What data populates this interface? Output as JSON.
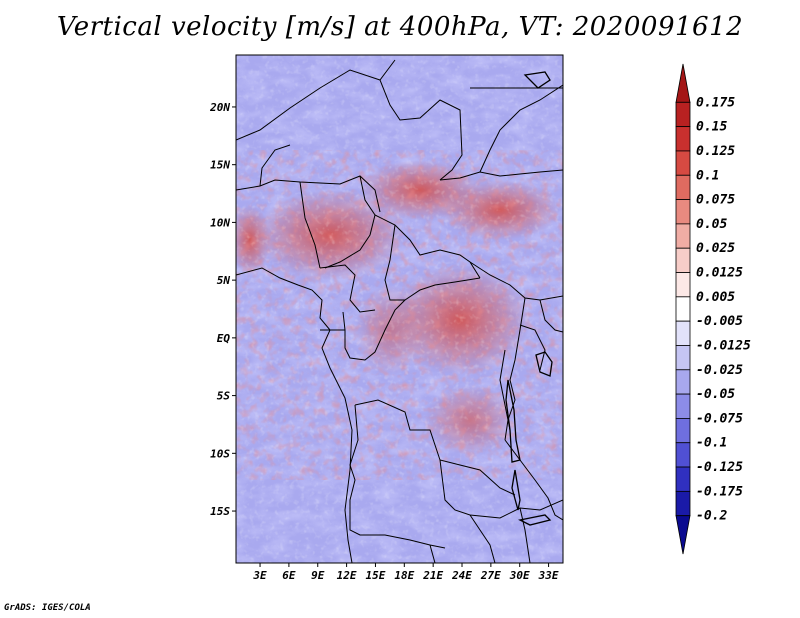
{
  "title": "Vertical velocity [m/s] at 400hPa, VT: 2020091612",
  "credit": "GrADS: IGES/COLA",
  "map": {
    "lat_labels": [
      "20N",
      "15N",
      "10N",
      "5N",
      "EQ",
      "5S",
      "10S",
      "15S"
    ],
    "lat_values": [
      20,
      15,
      10,
      5,
      0,
      -5,
      -10,
      -15
    ],
    "lon_labels": [
      "3E",
      "6E",
      "9E",
      "12E",
      "15E",
      "18E",
      "21E",
      "24E",
      "27E",
      "30E",
      "33E"
    ],
    "lon_values": [
      3,
      6,
      9,
      12,
      15,
      18,
      21,
      24,
      27,
      30,
      33
    ],
    "lon_range": [
      0.5,
      34.5
    ],
    "lat_range": [
      -19.5,
      24.5
    ]
  },
  "colorbar": {
    "labels": [
      "0.175",
      "0.15",
      "0.125",
      "0.1",
      "0.075",
      "0.05",
      "0.025",
      "0.0125",
      "0.005",
      "-0.005",
      "-0.0125",
      "-0.025",
      "-0.05",
      "-0.075",
      "-0.1",
      "-0.125",
      "-0.175",
      "-0.2"
    ],
    "colors": [
      "#a41616",
      "#b82121",
      "#c8302e",
      "#d64a42",
      "#df6b60",
      "#e88a80",
      "#f0ada5",
      "#f7cdc8",
      "#fce8e6",
      "#ffffff",
      "#e2e2fa",
      "#c5c5f3",
      "#a8a8ee",
      "#8c8ce8",
      "#6f6fdf",
      "#5050d4",
      "#3030c0",
      "#1a1aa8",
      "#0a0a90"
    ]
  }
}
